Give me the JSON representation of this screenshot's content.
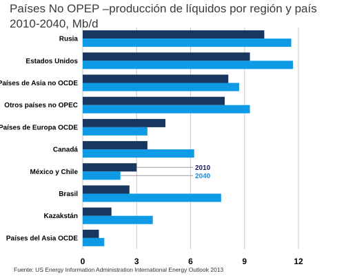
{
  "chart_data": {
    "type": "bar",
    "orientation": "horizontal",
    "title": "Países No OPEP –producción de líquidos por región y país 2010-2040, Mb/d",
    "categories": [
      "Rusia",
      "Estados Unidos",
      "Países de Asia no OCDE",
      "Otros países no OPEC",
      "Países de Europa OCDE",
      "Canadá",
      "México y Chile",
      "Brasil",
      "Kazakstán",
      "Países del Asia OCDE"
    ],
    "series": [
      {
        "name": "2010",
        "color": "#17375e",
        "values": [
          10.1,
          9.3,
          8.1,
          7.9,
          4.6,
          3.6,
          3.0,
          2.6,
          1.6,
          0.9
        ]
      },
      {
        "name": "2040",
        "color": "#0f9ae6",
        "values": [
          11.6,
          11.7,
          8.7,
          9.3,
          3.6,
          6.2,
          2.1,
          7.7,
          3.9,
          1.2
        ]
      }
    ],
    "xlim": [
      0,
      12
    ],
    "xticks": [
      "0",
      "3",
      "6",
      "9",
      "12"
    ],
    "grid": true,
    "legend": "annotation next to México y Chile bars"
  },
  "source_note": "Fuente: US Energy Information Administration International Energy Outlook 2013"
}
